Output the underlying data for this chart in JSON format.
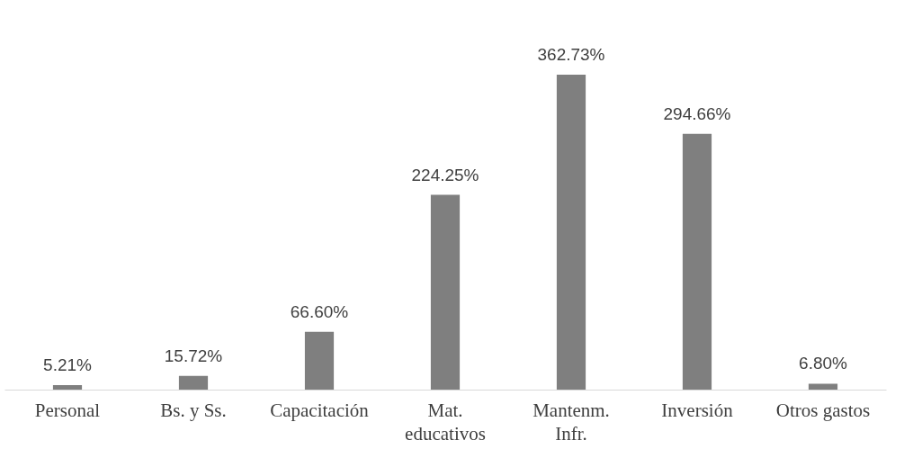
{
  "chart_data": {
    "type": "bar",
    "categories": [
      "Personal",
      "Bs. y Ss.",
      "Capacitación",
      "Mat.\neducativos",
      "Mantenm.\nInfr.",
      "Inversión",
      "Otros gastos"
    ],
    "values": [
      5.21,
      15.72,
      66.6,
      224.25,
      362.73,
      294.66,
      6.8
    ],
    "value_labels": [
      "5.21%",
      "15.72%",
      "66.60%",
      "224.25%",
      "362.73%",
      "294.66%",
      "6.80%"
    ],
    "color": "#7f7f7f",
    "grid": false
  }
}
